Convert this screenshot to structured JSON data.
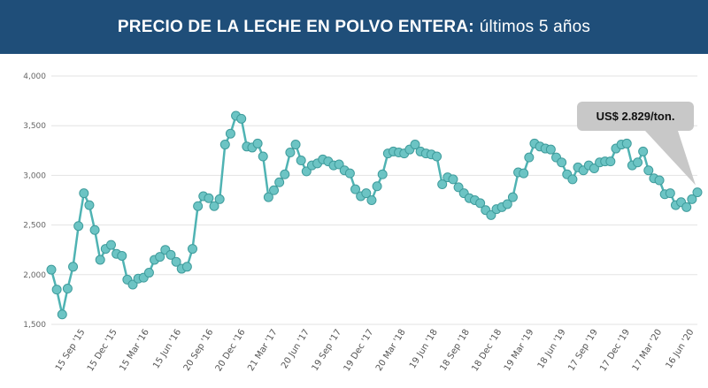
{
  "header": {
    "title_bold": "PRECIO DE LA LECHE EN POLVO ENTERA:",
    "title_light": "últimos 5 años"
  },
  "chart_data": {
    "type": "line",
    "title": "PRECIO DE LA LECHE EN POLVO ENTERA: últimos 5 años",
    "ylim": [
      1500,
      4000
    ],
    "yticks": [
      1500,
      2000,
      2500,
      3000,
      3500,
      4000
    ],
    "ytick_labels": [
      "1,500",
      "2,000",
      "2,500",
      "3,000",
      "3,500",
      "4,000"
    ],
    "xtick_labels": [
      "15 Sep '15",
      "15 Dec '15",
      "15 Mar '16",
      "15 Jun '16",
      "20 Sep '16",
      "20 Dec '16",
      "21 Mar '17",
      "20 Jun '17",
      "19 Sep '17",
      "19 Dec '17",
      "20 Mar '18",
      "19 Jun '18",
      "18 Sep '18",
      "18 Dec '18",
      "19 Mar '19",
      "18 Jun '19",
      "17 Sep '19",
      "17 Dec '19",
      "17 Mar '20",
      "16 Jun '20"
    ],
    "grid": true,
    "line_color": "#4fb3b3",
    "marker_color": "#6cc4c4",
    "values": [
      2050,
      1850,
      1600,
      1860,
      2080,
      2490,
      2820,
      2700,
      2450,
      2150,
      2260,
      2300,
      2210,
      2190,
      1950,
      1900,
      1960,
      1970,
      2020,
      2150,
      2180,
      2250,
      2200,
      2130,
      2060,
      2080,
      2260,
      2690,
      2790,
      2770,
      2690,
      2760,
      3310,
      3420,
      3600,
      3570,
      3290,
      3280,
      3320,
      3190,
      2780,
      2850,
      2930,
      3010,
      3230,
      3310,
      3150,
      3040,
      3100,
      3120,
      3160,
      3140,
      3100,
      3110,
      3050,
      3020,
      2860,
      2790,
      2820,
      2750,
      2890,
      3010,
      3220,
      3240,
      3230,
      3220,
      3260,
      3310,
      3240,
      3220,
      3210,
      3190,
      2910,
      2980,
      2960,
      2880,
      2820,
      2770,
      2750,
      2720,
      2650,
      2600,
      2660,
      2680,
      2710,
      2780,
      3030,
      3020,
      3180,
      3320,
      3290,
      3270,
      3260,
      3180,
      3130,
      3010,
      2960,
      3080,
      3050,
      3100,
      3070,
      3130,
      3140,
      3140,
      3270,
      3310,
      3320,
      3100,
      3130,
      3240,
      3050,
      2970,
      2950,
      2810,
      2820,
      2700,
      2730,
      2680,
      2760,
      2829
    ],
    "annotation": {
      "text": "US$ 2.829/ton.",
      "point": "last"
    }
  }
}
